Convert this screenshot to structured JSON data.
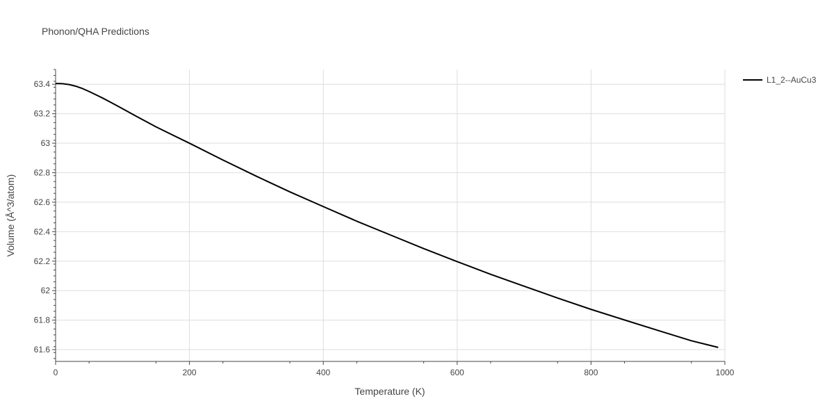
{
  "chart_data": {
    "type": "line",
    "title": "Phonon/QHA Predictions",
    "xlabel": "Temperature (K)",
    "ylabel": "Volume (Å^3/atom)",
    "xlim": [
      0,
      1000
    ],
    "ylim": [
      61.52,
      63.5
    ],
    "x_ticks": [
      0,
      200,
      400,
      600,
      800,
      1000
    ],
    "x_tick_labels": [
      "0",
      "200",
      "400",
      "600",
      "800",
      "1000"
    ],
    "y_ticks": [
      61.6,
      61.8,
      62.0,
      62.2,
      62.4,
      62.6,
      62.8,
      63.0,
      63.2,
      63.4
    ],
    "y_tick_labels": [
      "61.6",
      "61.8",
      "62",
      "62.2",
      "62.4",
      "62.6",
      "62.8",
      "63",
      "63.2",
      "63.4"
    ],
    "grid": true,
    "legend_position": "top-right",
    "series": [
      {
        "name": "L1_2--AuCu3",
        "color": "#000000",
        "x": [
          0,
          10,
          20,
          30,
          40,
          50,
          60,
          70,
          80,
          100,
          120,
          150,
          200,
          250,
          300,
          350,
          400,
          450,
          500,
          550,
          600,
          650,
          700,
          750,
          800,
          850,
          900,
          950,
          990
        ],
        "y": [
          63.405,
          63.404,
          63.398,
          63.387,
          63.371,
          63.351,
          63.329,
          63.307,
          63.283,
          63.234,
          63.184,
          63.111,
          63.0,
          62.886,
          62.776,
          62.67,
          62.57,
          62.471,
          62.378,
          62.285,
          62.197,
          62.111,
          62.03,
          61.95,
          61.873,
          61.801,
          61.73,
          61.66,
          61.615
        ]
      }
    ]
  }
}
